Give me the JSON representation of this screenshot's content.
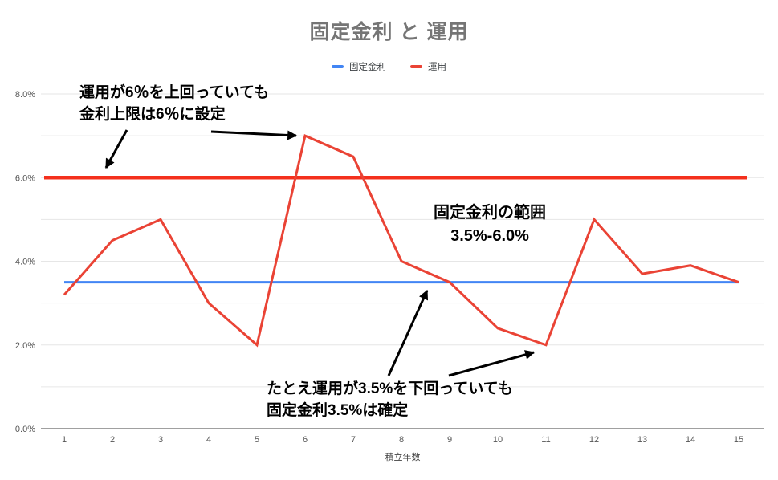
{
  "chart_data": {
    "type": "line",
    "title": "固定金利 と 運用",
    "xlabel": "積立年数",
    "x": [
      1,
      2,
      3,
      4,
      5,
      6,
      7,
      8,
      9,
      10,
      11,
      12,
      13,
      14,
      15
    ],
    "series": [
      {
        "name": "固定金利",
        "color": "#4285f4",
        "values": [
          3.5,
          3.5,
          3.5,
          3.5,
          3.5,
          3.5,
          3.5,
          3.5,
          3.5,
          3.5,
          3.5,
          3.5,
          3.5,
          3.5,
          3.5
        ]
      },
      {
        "name": "運用",
        "color": "#ea4335",
        "values": [
          3.2,
          4.5,
          5.0,
          3.0,
          2.0,
          7.0,
          6.5,
          4.0,
          3.5,
          2.4,
          2.0,
          5.0,
          3.7,
          3.9,
          3.5
        ]
      }
    ],
    "overlay_cap_line": {
      "value": 6.0,
      "color": "#f4301d"
    },
    "ylim": [
      0,
      8
    ],
    "minor_grid_step": 1,
    "yticks": [
      {
        "value": 0,
        "label": "0.0%"
      },
      {
        "value": 2,
        "label": "2.0%"
      },
      {
        "value": 4,
        "label": "4.0%"
      },
      {
        "value": 6,
        "label": "6.0%"
      },
      {
        "value": 8,
        "label": "8.0%"
      }
    ],
    "legend_position": "top",
    "grid": true
  },
  "annotations": {
    "cap_note": {
      "line1": "運用が6％を上回っていても",
      "line2": "金利上限は6％に設定"
    },
    "range_note": {
      "line1": "固定金利の範囲",
      "line2": "3.5%-6.0%"
    },
    "floor_note": {
      "line1": "たとえ運用が3.5%を下回っていても",
      "line2": "固定金利3.5%は確定"
    }
  },
  "colors": {
    "title": "#757575",
    "tick_label": "#555555",
    "axis_line": "#424242",
    "gridline": "#e6e6e6",
    "annotation_arrow": "#000000"
  }
}
